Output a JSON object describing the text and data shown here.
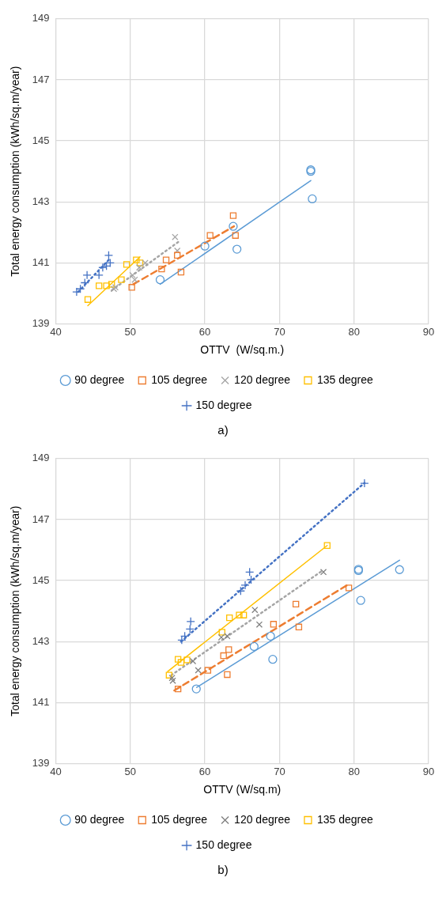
{
  "chart_data": [
    {
      "type": "scatter",
      "xlabel": "OTTV  (W/sq.m.)",
      "ylabel": "Total energy consumption (kWh/sq.m/year)",
      "xlim": [
        40,
        90
      ],
      "xticks": [
        40,
        50,
        60,
        70,
        80,
        90
      ],
      "ylim": [
        139,
        149
      ],
      "yticks": [
        139,
        141,
        143,
        145,
        147,
        149
      ],
      "grid": true,
      "legend": "bottom",
      "annotations": [
        "a)"
      ],
      "series": [
        {
          "name": "90 degree",
          "color": "#5b9bd5",
          "marker": "circle",
          "x": [
            54,
            60,
            63.8,
            64.3,
            74.2,
            74.2,
            74.4
          ],
          "values": [
            140.45,
            141.55,
            142.2,
            141.45,
            144.05,
            144.0,
            143.1
          ]
        },
        {
          "name": "105 degree",
          "color": "#ed7d31",
          "marker": "square",
          "x": [
            50.2,
            54.2,
            54.8,
            56.3,
            56.8,
            60.7,
            63.8,
            64.1
          ],
          "values": [
            140.2,
            140.8,
            141.1,
            141.25,
            140.7,
            141.9,
            142.55,
            141.9
          ]
        },
        {
          "name": "120 degree",
          "color": "#a5a5a5",
          "marker": "x",
          "x": [
            47.8,
            48,
            50.3,
            50.6,
            51.2,
            52,
            56,
            56.3
          ],
          "values": [
            140.15,
            140.2,
            140.6,
            140.45,
            140.85,
            141,
            141.85,
            141.4
          ]
        },
        {
          "name": "135 degree",
          "color": "#ffc000",
          "marker": "square",
          "x": [
            44.3,
            45.8,
            46.8,
            47.5,
            48.8,
            49.5,
            50.8,
            51.3
          ],
          "values": [
            139.8,
            140.25,
            140.25,
            140.3,
            140.45,
            140.95,
            141.1,
            141.0
          ]
        },
        {
          "name": "150 degree",
          "color": "#4472c4",
          "marker": "cross",
          "x": [
            42.8,
            43.3,
            43.9,
            44.2,
            45.8,
            46.3,
            46.8,
            47.1,
            47.3
          ],
          "values": [
            140.05,
            140.15,
            140.35,
            140.6,
            140.6,
            140.85,
            140.9,
            141.25,
            141.0
          ]
        },
        {
          "type": "line",
          "color": "#5b9bd5",
          "line_style": "solid",
          "x": [
            54,
            74.2
          ],
          "values": [
            140.3,
            143.7
          ]
        },
        {
          "type": "line",
          "color": "#ed7d31",
          "line_style": "dashed",
          "x": [
            50.4,
            63.9
          ],
          "values": [
            140.3,
            142.2
          ]
        },
        {
          "type": "line",
          "color": "#a5a5a5",
          "line_style": "dotted",
          "x": [
            47.5,
            56.5
          ],
          "values": [
            140.1,
            141.7
          ]
        },
        {
          "type": "line",
          "color": "#ffc000",
          "line_style": "solid",
          "x": [
            44.3,
            51.3
          ],
          "values": [
            139.6,
            141.2
          ]
        },
        {
          "type": "line",
          "color": "#4472c4",
          "line_style": "dotted",
          "x": [
            43,
            47.3
          ],
          "values": [
            140.05,
            141.15
          ]
        }
      ]
    },
    {
      "type": "scatter",
      "xlabel": "OTTV (W/sq.m)",
      "ylabel": "Total energy consumption (kWh/sq.m/year)",
      "xlim": [
        40,
        90
      ],
      "xticks": [
        40,
        50,
        60,
        70,
        80,
        90
      ],
      "ylim": [
        139,
        149
      ],
      "yticks": [
        139,
        141,
        143,
        145,
        147,
        149
      ],
      "grid": true,
      "legend": "bottom",
      "annotations": [
        "b)"
      ],
      "series": [
        {
          "name": "90 degree",
          "color": "#5b9bd5",
          "marker": "circle",
          "x": [
            58.85,
            66.6,
            68.8,
            69.1,
            80.6,
            80.6,
            80.9,
            86.1
          ],
          "values": [
            141.45,
            142.84,
            143.18,
            142.42,
            145.37,
            145.33,
            144.35,
            145.36
          ]
        },
        {
          "name": "105 degree",
          "color": "#ed7d31",
          "marker": "square",
          "x": [
            56.4,
            60.4,
            62.5,
            63.2,
            63.0,
            69.2,
            72.2,
            72.6,
            79.3
          ],
          "values": [
            141.45,
            142.06,
            142.54,
            142.74,
            141.92,
            143.57,
            144.23,
            143.48,
            144.76
          ]
        },
        {
          "name": "120 degree",
          "color": "#7f7f7f",
          "marker": "x",
          "x": [
            55.6,
            55.7,
            58.4,
            59.1,
            62.2,
            63.0,
            66.7,
            67.3,
            75.9
          ],
          "values": [
            141.81,
            141.72,
            142.36,
            142.06,
            143.14,
            143.18,
            144.04,
            143.56,
            145.28
          ]
        },
        {
          "name": "135 degree",
          "color": "#ffc000",
          "marker": "square",
          "x": [
            55.2,
            56.4,
            56.8,
            57.6,
            62.3,
            63.3,
            64.6,
            65.2,
            76.4
          ],
          "values": [
            141.9,
            142.42,
            142.32,
            142.4,
            143.31,
            143.78,
            143.87,
            143.87,
            146.15
          ]
        },
        {
          "name": "150 degree",
          "color": "#4472c4",
          "marker": "cross",
          "x": [
            56.9,
            57.3,
            58.0,
            58.1,
            64.8,
            65.4,
            66.2,
            66.0,
            81.4
          ],
          "values": [
            143.05,
            143.18,
            143.41,
            143.66,
            144.66,
            144.85,
            145.03,
            145.28,
            148.19
          ]
        },
        {
          "type": "line",
          "color": "#5b9bd5",
          "line_style": "solid",
          "x": [
            58.9,
            86.1
          ],
          "values": [
            141.5,
            145.67
          ]
        },
        {
          "type": "line",
          "color": "#ed7d31",
          "line_style": "dashed",
          "x": [
            55.9,
            79.0
          ],
          "values": [
            141.4,
            144.84
          ]
        },
        {
          "type": "line",
          "color": "#a5a5a5",
          "line_style": "dotted",
          "x": [
            55.5,
            75.9
          ],
          "values": [
            141.9,
            145.35
          ]
        },
        {
          "type": "line",
          "color": "#ffc000",
          "line_style": "solid",
          "x": [
            55.0,
            76.4
          ],
          "values": [
            142.02,
            146.15
          ]
        },
        {
          "type": "line",
          "color": "#4472c4",
          "line_style": "dotted",
          "x": [
            56.8,
            81.4
          ],
          "values": [
            143.0,
            148.2
          ]
        }
      ]
    }
  ]
}
